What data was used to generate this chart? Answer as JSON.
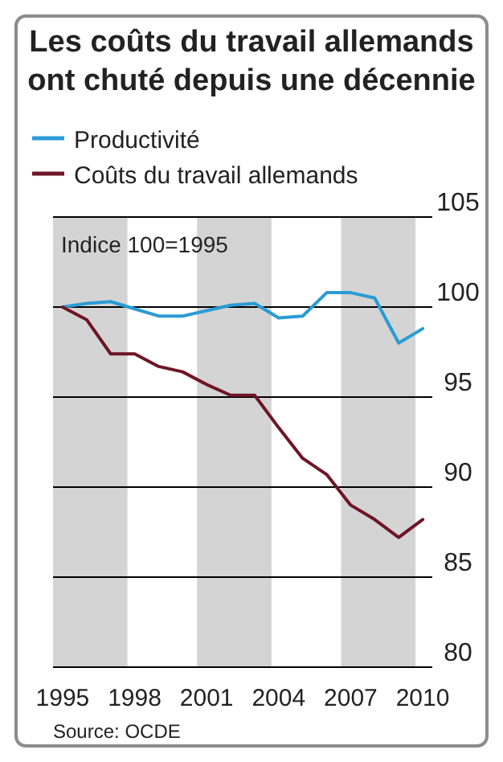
{
  "chart_data": {
    "type": "line",
    "title": "Les coûts du travail allemands\nont chuté depuis une décennie",
    "x": [
      1995,
      1996,
      1997,
      1998,
      1999,
      2000,
      2001,
      2002,
      2003,
      2004,
      2005,
      2006,
      2007,
      2008,
      2009,
      2010
    ],
    "series": [
      {
        "name": "Productivité",
        "color": "#2a9bd5",
        "values": [
          100,
          100.2,
          100.3,
          99.9,
          99.5,
          99.5,
          99.8,
          100.1,
          100.2,
          99.4,
          99.5,
          100.8,
          100.8,
          100.5,
          98.0,
          98.8
        ]
      },
      {
        "name": "Coûts du travail allemands",
        "color": "#6e1526",
        "values": [
          100,
          99.3,
          97.4,
          97.4,
          96.7,
          96.4,
          95.7,
          95.1,
          95.1,
          93.3,
          91.6,
          90.7,
          89.0,
          88.2,
          87.2,
          88.2
        ]
      }
    ],
    "xlim": [
      1994.6,
      2010.4
    ],
    "xticks": [
      1995,
      1998,
      2001,
      2004,
      2007,
      2010
    ],
    "ylim": [
      80,
      105
    ],
    "yticks": [
      80,
      85,
      90,
      95,
      100,
      105
    ],
    "grid": "y",
    "legend": "top left",
    "bands": [
      {
        "axis": "x",
        "from": 1994.6,
        "to": 1997.7,
        "color": "#d4d4d4"
      },
      {
        "axis": "x",
        "from": 2000.6,
        "to": 2003.7,
        "color": "#d4d4d4"
      },
      {
        "axis": "x",
        "from": 2006.6,
        "to": 2009.7,
        "color": "#d4d4d4"
      }
    ],
    "annotations": [
      "Indice 100=1995",
      "Source: OCDE"
    ]
  }
}
